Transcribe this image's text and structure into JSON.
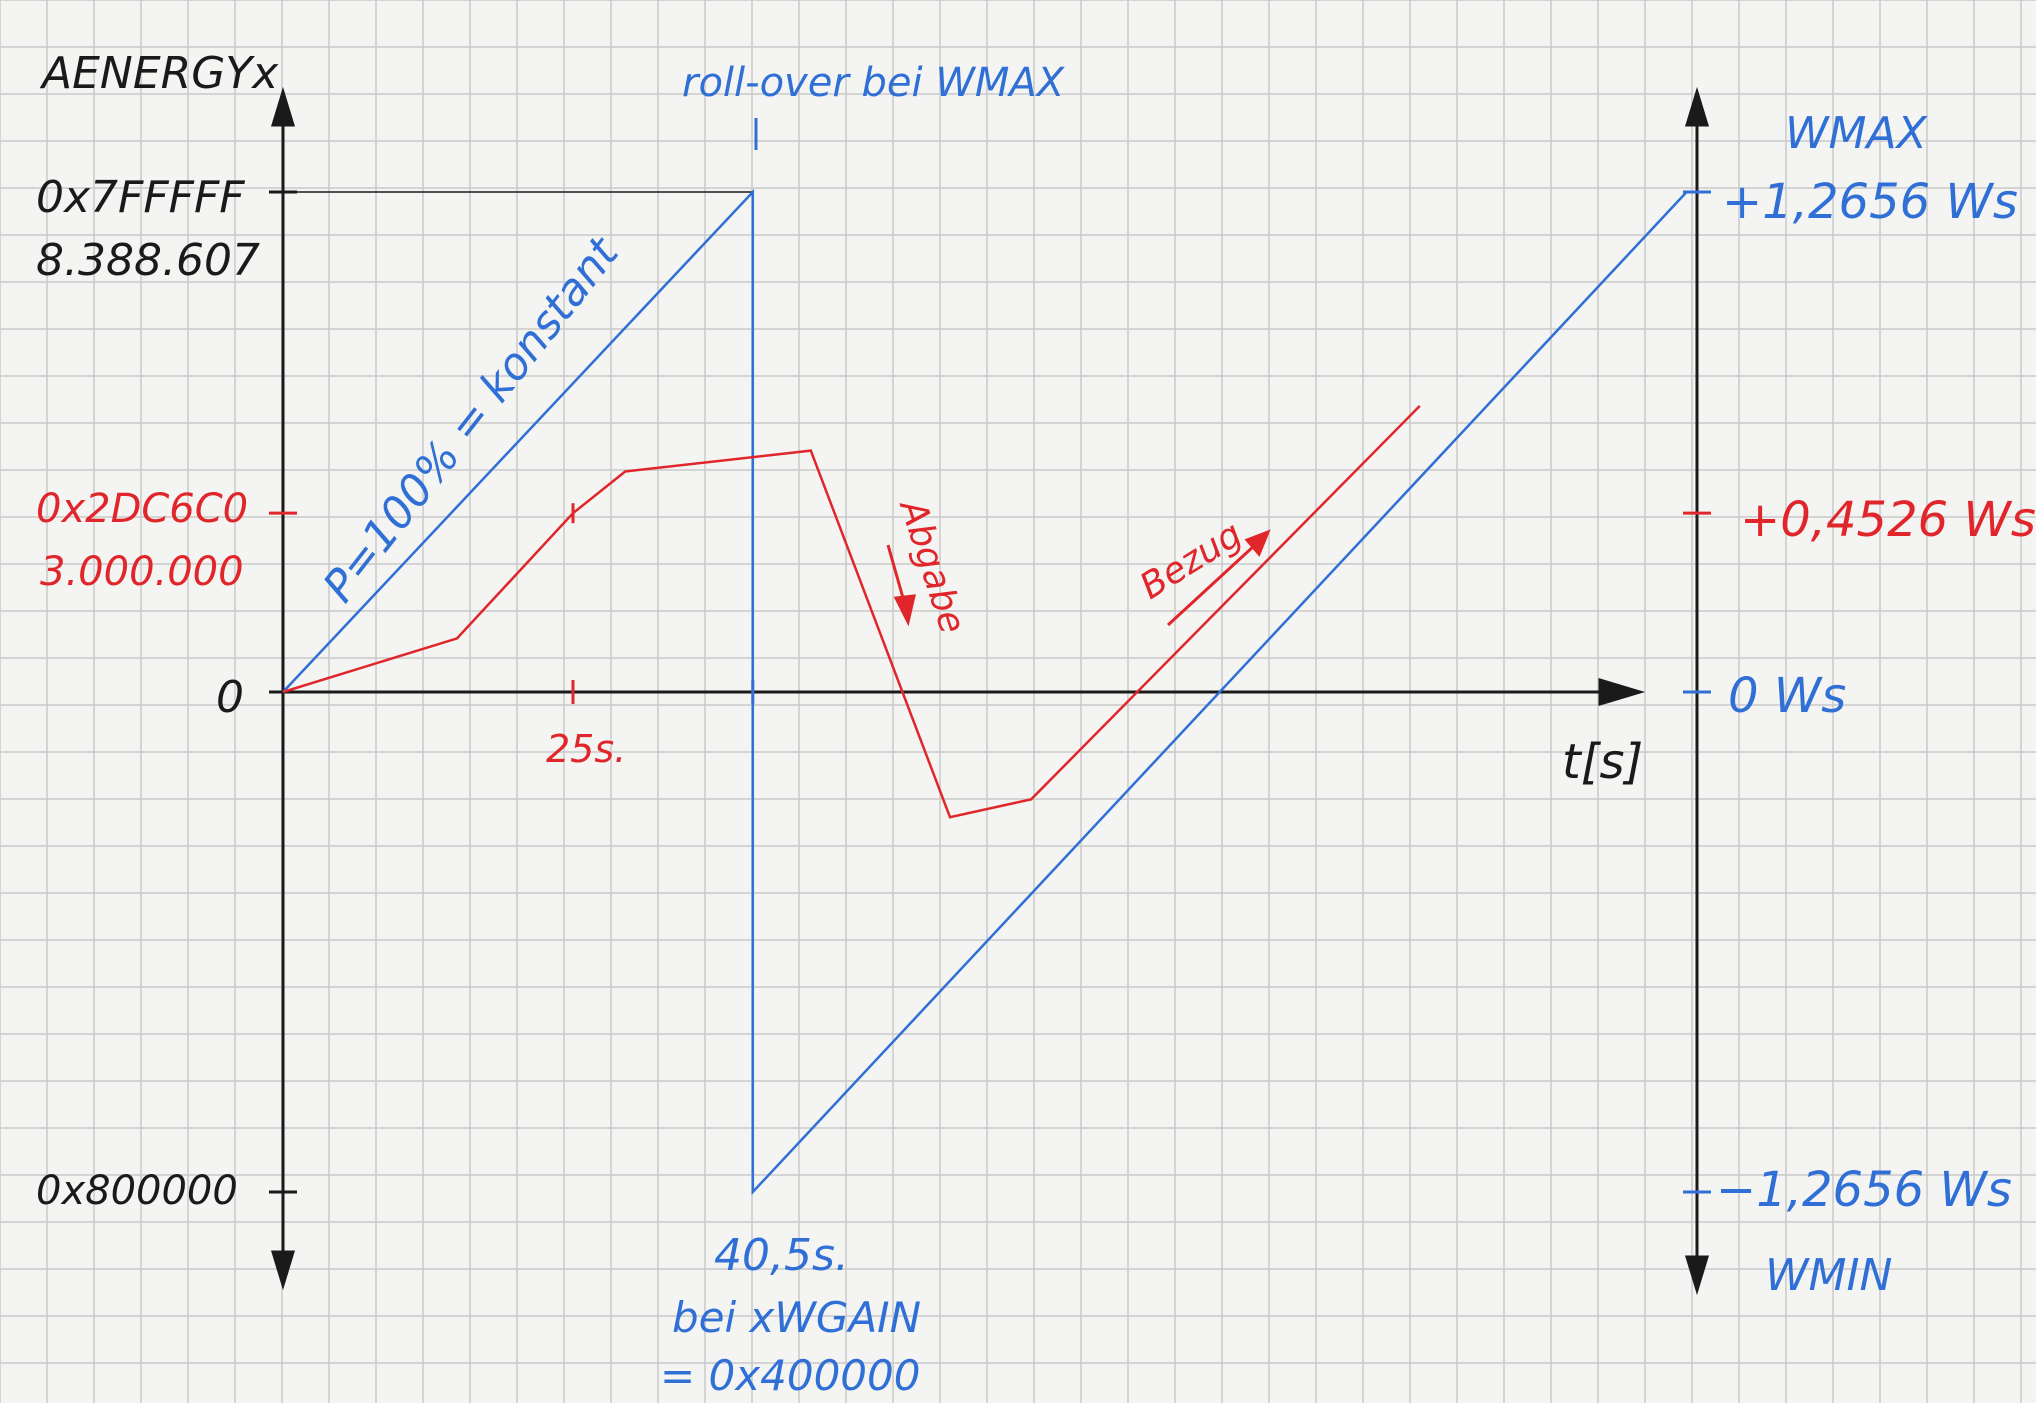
{
  "colors": {
    "paper": "#f4f4f2",
    "grid": "#c9c9c9",
    "axis": "#1a1a1a",
    "blue": "#2f6fd6",
    "red": "#e0262b"
  },
  "chart_data": {
    "type": "line",
    "title": "",
    "left_axis": {
      "label": "AENERGYx",
      "ticks": [
        {
          "value": 8388607,
          "labels": [
            "0x7FFFFF",
            "8.388.607"
          ],
          "color": "black"
        },
        {
          "value": 3000000,
          "labels": [
            "0x2DC6C0",
            "3.000.000"
          ],
          "color": "red"
        },
        {
          "value": 0,
          "labels": [
            "0"
          ],
          "color": "black"
        },
        {
          "value": -8388608,
          "labels": [
            "0x800000"
          ],
          "color": "black"
        }
      ],
      "ylim": [
        -8388608,
        8388607
      ]
    },
    "right_axis": {
      "label_top": "WMAX",
      "label_bottom": "WMIN",
      "ticks": [
        {
          "value": 8388607,
          "label": "+1,2656 Ws",
          "color": "blue"
        },
        {
          "value": 3000000,
          "label": "+0,4526 Ws",
          "color": "red"
        },
        {
          "value": 0,
          "label": "0 Ws",
          "color": "blue"
        },
        {
          "value": -8388608,
          "label": "−1,2656 Ws",
          "color": "blue"
        }
      ]
    },
    "x_axis": {
      "label": "t[s]",
      "ticks": [
        {
          "value": 25,
          "label": "25s.",
          "color": "red"
        },
        {
          "value": 40.5,
          "label": "40,5s.",
          "color": "blue"
        }
      ],
      "xlim": [
        0,
        118
      ]
    },
    "series": [
      {
        "color": "blue",
        "x": [
          0,
          40.5,
          40.5,
          121
        ],
        "y": [
          0,
          8388607,
          -8388608,
          8388607
        ]
      },
      {
        "color": "red",
        "x": [
          0,
          15,
          25,
          29.5,
          45.5,
          57.5,
          64.5,
          98
        ],
        "y": [
          0,
          900000,
          3000000,
          3700000,
          4050000,
          -2100000,
          -1800000,
          4800000
        ]
      }
    ],
    "annotations": {
      "rollover": "roll-over bei WMAX",
      "slope_label": "P=100% = konstant",
      "abgabe": "Abgabe",
      "bezug": "Bezug",
      "note_line1": "bei xWGAIN",
      "note_line2": "= 0x400000"
    }
  }
}
